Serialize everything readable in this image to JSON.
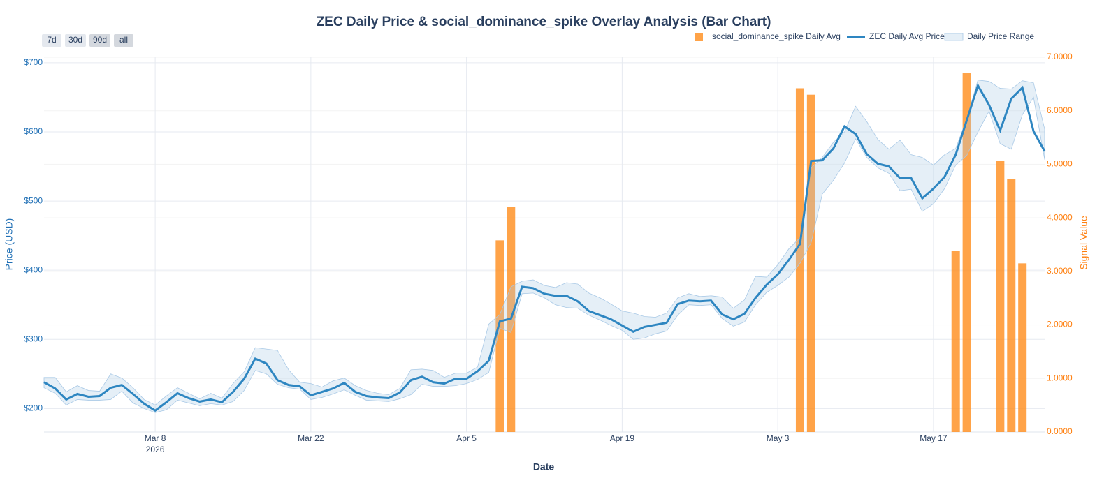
{
  "chart_data": {
    "type": "price-signal-overlay",
    "title": "ZEC Daily Price & social_dominance_spike Overlay Analysis (Bar Chart)",
    "range_buttons": [
      "7d",
      "30d",
      "90d",
      "all"
    ],
    "x_title": "Date",
    "y_title": "Price (USD)",
    "y2_title": "Signal Value",
    "y_title_color": "#1f6fb5",
    "y2_title_color": "#ff7f0e",
    "xlim": [
      "2026-02-26",
      "2026-05-27"
    ],
    "xticks": [
      {
        "value": "2026-03-08",
        "label": "Mar 8",
        "year": "2026"
      },
      {
        "value": "2026-03-22",
        "label": "Mar 22"
      },
      {
        "value": "2026-04-05",
        "label": "Apr 5"
      },
      {
        "value": "2026-04-19",
        "label": "Apr 19"
      },
      {
        "value": "2026-05-03",
        "label": "May 3"
      },
      {
        "value": "2026-05-17",
        "label": "May 17"
      }
    ],
    "ylim": [
      166,
      708
    ],
    "yticks": [
      {
        "value": 200,
        "label": "$200"
      },
      {
        "value": 300,
        "label": "$300"
      },
      {
        "value": 400,
        "label": "$400"
      },
      {
        "value": 500,
        "label": "$500"
      },
      {
        "value": 600,
        "label": "$600"
      },
      {
        "value": 700,
        "label": "$700"
      }
    ],
    "y2lim": [
      0,
      7
    ],
    "y2ticks": [
      {
        "value": 0,
        "label": "0.0000"
      },
      {
        "value": 1,
        "label": "1.0000"
      },
      {
        "value": 2,
        "label": "2.0000"
      },
      {
        "value": 3,
        "label": "3.0000"
      },
      {
        "value": 4,
        "label": "4.0000"
      },
      {
        "value": 5,
        "label": "5.0000"
      },
      {
        "value": 6,
        "label": "6.0000"
      },
      {
        "value": 7,
        "label": "7.0000"
      }
    ],
    "grid": true,
    "legend": "top-right",
    "x": [
      "2026-02-26",
      "2026-02-27",
      "2026-02-28",
      "2026-03-01",
      "2026-03-02",
      "2026-03-03",
      "2026-03-04",
      "2026-03-05",
      "2026-03-06",
      "2026-03-07",
      "2026-03-08",
      "2026-03-09",
      "2026-03-10",
      "2026-03-11",
      "2026-03-12",
      "2026-03-13",
      "2026-03-14",
      "2026-03-15",
      "2026-03-16",
      "2026-03-17",
      "2026-03-18",
      "2026-03-19",
      "2026-03-20",
      "2026-03-21",
      "2026-03-22",
      "2026-03-23",
      "2026-03-24",
      "2026-03-25",
      "2026-03-26",
      "2026-03-27",
      "2026-03-28",
      "2026-03-29",
      "2026-03-30",
      "2026-03-31",
      "2026-04-01",
      "2026-04-02",
      "2026-04-03",
      "2026-04-04",
      "2026-04-05",
      "2026-04-06",
      "2026-04-07",
      "2026-04-08",
      "2026-04-09",
      "2026-04-10",
      "2026-04-11",
      "2026-04-12",
      "2026-04-13",
      "2026-04-14",
      "2026-04-15",
      "2026-04-16",
      "2026-04-17",
      "2026-04-18",
      "2026-04-19",
      "2026-04-20",
      "2026-04-21",
      "2026-04-22",
      "2026-04-23",
      "2026-04-24",
      "2026-04-25",
      "2026-04-26",
      "2026-04-27",
      "2026-04-28",
      "2026-04-29",
      "2026-04-30",
      "2026-05-01",
      "2026-05-02",
      "2026-05-03",
      "2026-05-04",
      "2026-05-05",
      "2026-05-06",
      "2026-05-07",
      "2026-05-08",
      "2026-05-09",
      "2026-05-10",
      "2026-05-11",
      "2026-05-12",
      "2026-05-13",
      "2026-05-14",
      "2026-05-15",
      "2026-05-16",
      "2026-05-17",
      "2026-05-18",
      "2026-05-19",
      "2026-05-20",
      "2026-05-21",
      "2026-05-22",
      "2026-05-23",
      "2026-05-24",
      "2026-05-25",
      "2026-05-26",
      "2026-05-27"
    ],
    "series": [
      {
        "name": "social_dominance_spike Daily Avg",
        "kind": "bar",
        "axis": "y2",
        "color": "#ff8c1a",
        "x": [
          "2026-04-08",
          "2026-04-09",
          "2026-05-05",
          "2026-05-06",
          "2026-05-19",
          "2026-05-20",
          "2026-05-23",
          "2026-05-24",
          "2026-05-25"
        ],
        "values": [
          3.58,
          4.2,
          6.42,
          6.3,
          3.38,
          6.7,
          5.07,
          4.72,
          3.15
        ]
      },
      {
        "name": "ZEC Daily Avg Price",
        "kind": "line",
        "color": "#2e86c1",
        "values": [
          238,
          229,
          213,
          221,
          217,
          218,
          230,
          234,
          221,
          207,
          197,
          209,
          222,
          215,
          210,
          213,
          209,
          224,
          243,
          272,
          265,
          241,
          234,
          232,
          219,
          224,
          229,
          237,
          224,
          218,
          216,
          215,
          223,
          241,
          246,
          238,
          236,
          243,
          243,
          254,
          269,
          326,
          330,
          376,
          374,
          366,
          363,
          363,
          355,
          341,
          335,
          329,
          320,
          311,
          318,
          321,
          324,
          351,
          356,
          355,
          356,
          336,
          329,
          337,
          360,
          379,
          394,
          415,
          438,
          558,
          559,
          576,
          608,
          597,
          568,
          554,
          550,
          533,
          533,
          504,
          518,
          535,
          567,
          617,
          667,
          639,
          602,
          648,
          664,
          601,
          572
        ]
      },
      {
        "name": "Daily Price Range",
        "kind": "band",
        "color": "#a9c9e6",
        "high": [
          245,
          245,
          224,
          233,
          226,
          225,
          250,
          244,
          230,
          213,
          205,
          218,
          230,
          222,
          214,
          222,
          215,
          236,
          253,
          288,
          286,
          284,
          256,
          238,
          236,
          231,
          240,
          244,
          233,
          226,
          222,
          220,
          229,
          256,
          257,
          255,
          245,
          251,
          251,
          260,
          322,
          336,
          376,
          384,
          386,
          378,
          375,
          382,
          380,
          367,
          360,
          351,
          341,
          338,
          333,
          332,
          338,
          360,
          366,
          362,
          363,
          361,
          345,
          357,
          391,
          390,
          408,
          431,
          447,
          548,
          563,
          585,
          600,
          637,
          615,
          589,
          575,
          588,
          567,
          563,
          552,
          567,
          576,
          619,
          675,
          673,
          663,
          662,
          674,
          671,
          604
        ],
        "low": [
          230,
          222,
          205,
          213,
          212,
          212,
          213,
          225,
          208,
          200,
          194,
          198,
          212,
          208,
          204,
          207,
          205,
          210,
          226,
          255,
          250,
          235,
          230,
          228,
          213,
          216,
          221,
          227,
          219,
          212,
          211,
          210,
          214,
          220,
          235,
          232,
          232,
          233,
          236,
          242,
          252,
          316,
          310,
          366,
          367,
          360,
          350,
          346,
          345,
          335,
          328,
          320,
          313,
          300,
          302,
          308,
          312,
          335,
          350,
          349,
          350,
          330,
          319,
          325,
          350,
          368,
          378,
          390,
          410,
          440,
          510,
          530,
          555,
          590,
          563,
          548,
          540,
          515,
          517,
          485,
          496,
          518,
          552,
          566,
          600,
          630,
          583,
          575,
          625,
          650,
          560
        ]
      }
    ]
  }
}
